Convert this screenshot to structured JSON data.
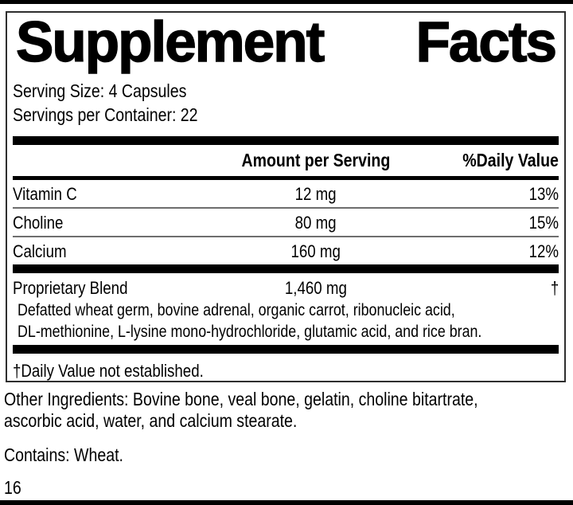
{
  "label": {
    "title_left": "Supplement",
    "title_right": "Facts",
    "serving_size": "Serving Size: 4 Capsules",
    "servings_per_container": "Servings per Container: 22",
    "columns": {
      "amount_header": "Amount per Serving",
      "daily_value_header": "%Daily Value"
    },
    "rows": [
      {
        "name": "Vitamin C",
        "amount": "12 mg",
        "dv": "13%"
      },
      {
        "name": "Choline",
        "amount": "80 mg",
        "dv": "15%"
      },
      {
        "name": "Calcium",
        "amount": "160 mg",
        "dv": "12%"
      }
    ],
    "blend": {
      "name": "Proprietary Blend",
      "amount": "1,460 mg",
      "dv": "†",
      "description_line1": "Defatted wheat germ, bovine adrenal, organic carrot, ribonucleic acid,",
      "description_line2": "DL-methionine, L-lysine mono-hydrochloride, glutamic acid, and rice bran."
    },
    "footnote": "†Daily Value not established."
  },
  "other_info": {
    "other_ingredients_line1": "Other Ingredients: Bovine bone, veal bone, gelatin, choline bitartrate,",
    "other_ingredients_line2": "ascorbic acid, water, and calcium stearate.",
    "contains": "Contains: Wheat."
  },
  "page": {
    "page_number": "16"
  },
  "colors": {
    "text": "#000000",
    "bar": "#000000",
    "hairline": "#6e6e6e",
    "border": "#2e2e2e",
    "bg": "#ffffff"
  }
}
